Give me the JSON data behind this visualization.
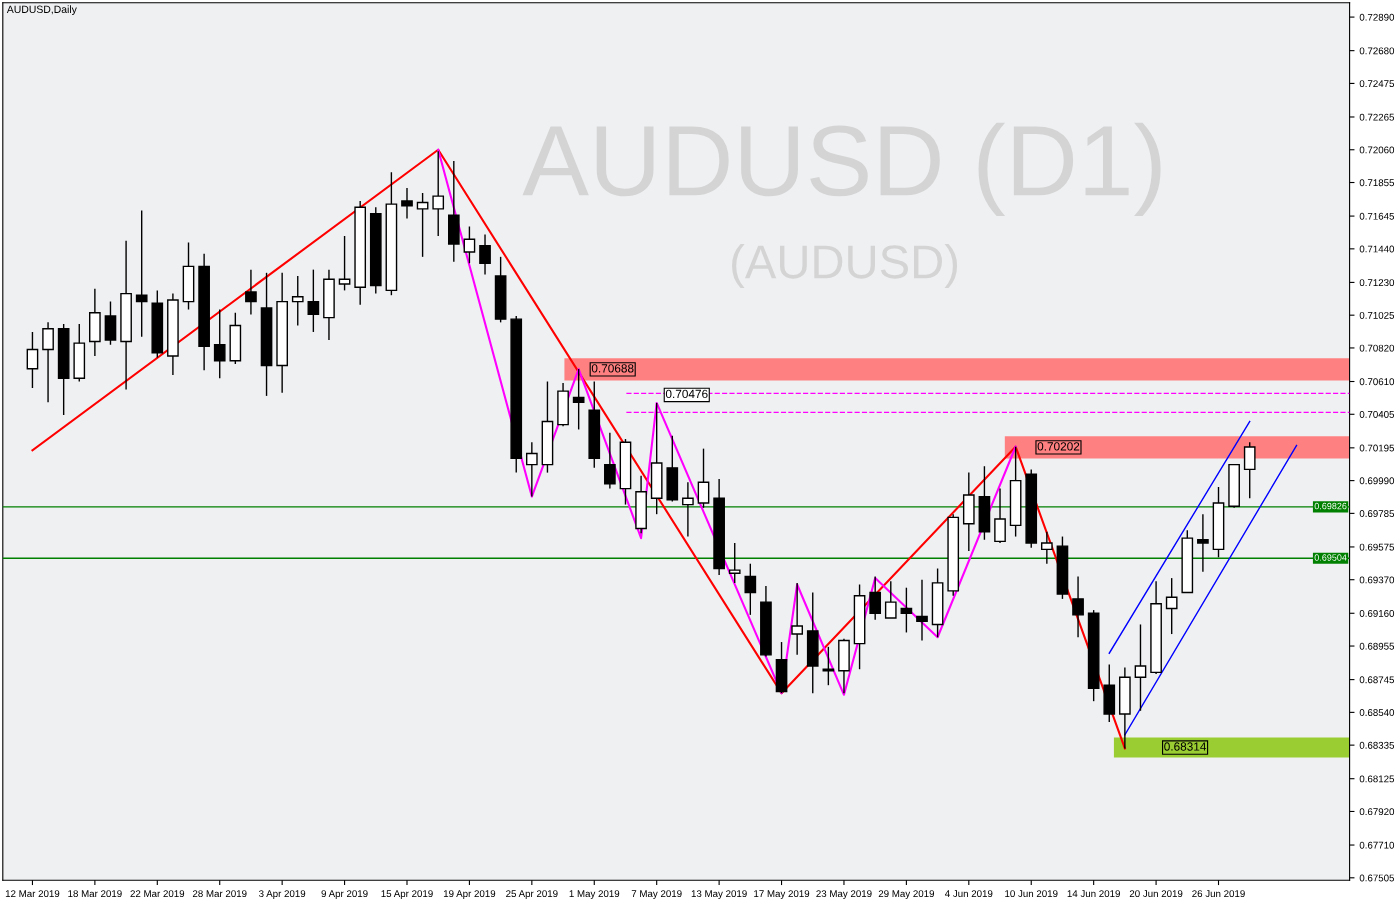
{
  "chart_data": {
    "type": "candlestick",
    "title": "AUDUSD,Daily",
    "categories": [
      "12 Mar 2019",
      null,
      null,
      null,
      "18 Mar 2019",
      null,
      null,
      null,
      "22 Mar 2019",
      null,
      null,
      null,
      "28 Mar 2019",
      null,
      null,
      null,
      "3 Apr 2019",
      null,
      null,
      null,
      "9 Apr 2019",
      null,
      null,
      null,
      "15 Apr 2019",
      null,
      null,
      null,
      "19 Apr 2019",
      null,
      null,
      null,
      "25 Apr 2019",
      null,
      null,
      null,
      "1 May 2019",
      null,
      null,
      null,
      "7 May 2019",
      null,
      null,
      null,
      "13 May 2019",
      null,
      null,
      null,
      "17 May 2019",
      null,
      null,
      null,
      "23 May 2019",
      null,
      null,
      null,
      "29 May 2019",
      null,
      null,
      null,
      "4 Jun 2019",
      null,
      null,
      null,
      "10 Jun 2019",
      null,
      null,
      null,
      "14 Jun 2019",
      null,
      null,
      null,
      "20 Jun 2019",
      null,
      null,
      null,
      "26 Jun 2019",
      null,
      null,
      null,
      null,
      null,
      null,
      null,
      null
    ],
    "ohlc": [
      [
        0.7069,
        0.7092,
        0.7057,
        0.7081
      ],
      [
        0.7081,
        0.7098,
        0.7048,
        0.7094
      ],
      [
        0.7094,
        0.7097,
        0.704,
        0.7063
      ],
      [
        0.7063,
        0.7097,
        0.7061,
        0.7085
      ],
      [
        0.7086,
        0.7119,
        0.7077,
        0.7104
      ],
      [
        0.7102,
        0.7111,
        0.7084,
        0.7087
      ],
      [
        0.7086,
        0.7149,
        0.7056,
        0.7116
      ],
      [
        0.7115,
        0.7168,
        0.7089,
        0.7111
      ],
      [
        0.711,
        0.7118,
        0.7076,
        0.7079
      ],
      [
        0.7077,
        0.7116,
        0.7065,
        0.7112
      ],
      [
        0.7111,
        0.7148,
        0.7106,
        0.7133
      ],
      [
        0.7133,
        0.7141,
        0.7068,
        0.7083
      ],
      [
        0.7084,
        0.7106,
        0.7063,
        0.7074
      ],
      [
        0.7074,
        0.7104,
        0.7072,
        0.7096
      ],
      [
        0.7117,
        0.7131,
        0.7103,
        0.7111
      ],
      [
        0.7107,
        0.7129,
        0.7052,
        0.7071
      ],
      [
        0.7071,
        0.7129,
        0.7054,
        0.7111
      ],
      [
        0.7111,
        0.7127,
        0.7096,
        0.7114
      ],
      [
        0.7111,
        0.7131,
        0.7092,
        0.7103
      ],
      [
        0.7101,
        0.7131,
        0.7087,
        0.7125
      ],
      [
        0.7122,
        0.7152,
        0.7118,
        0.7125
      ],
      [
        0.712,
        0.7174,
        0.7109,
        0.717
      ],
      [
        0.7166,
        0.717,
        0.7116,
        0.7121
      ],
      [
        0.7118,
        0.7192,
        0.7115,
        0.7172
      ],
      [
        0.7174,
        0.7182,
        0.7163,
        0.7171
      ],
      [
        0.7169,
        0.7179,
        0.7139,
        0.7173
      ],
      [
        0.7169,
        0.7205,
        0.7152,
        0.7177
      ],
      [
        0.7165,
        0.7199,
        0.7136,
        0.7147
      ],
      [
        0.7142,
        0.7158,
        0.7135,
        0.715
      ],
      [
        0.7146,
        0.7153,
        0.7128,
        0.7135
      ],
      [
        0.7127,
        0.7139,
        0.7098,
        0.71
      ],
      [
        0.71,
        0.7102,
        0.7004,
        0.7013
      ],
      [
        0.7009,
        0.7023,
        0.6989,
        0.7016
      ],
      [
        0.7009,
        0.7061,
        0.7004,
        0.7036
      ],
      [
        0.7034,
        0.706,
        0.7033,
        0.7055
      ],
      [
        0.7051,
        0.70688,
        0.7031,
        0.7048
      ],
      [
        0.7043,
        0.7061,
        0.7007,
        0.7013
      ],
      [
        0.7009,
        0.7029,
        0.6994,
        0.6997
      ],
      [
        0.6994,
        0.7025,
        0.6984,
        0.7023
      ],
      [
        0.6969,
        0.7002,
        0.6966,
        0.6992
      ],
      [
        0.6988,
        0.70476,
        0.6978,
        0.701
      ],
      [
        0.7007,
        0.7027,
        0.6986,
        0.6987
      ],
      [
        0.6984,
        0.6998,
        0.6964,
        0.6988
      ],
      [
        0.6985,
        0.7019,
        0.6982,
        0.6998
      ],
      [
        0.6988,
        0.7,
        0.694,
        0.6944
      ],
      [
        0.6941,
        0.696,
        0.6935,
        0.6943
      ],
      [
        0.6939,
        0.6947,
        0.6915,
        0.6929
      ],
      [
        0.6923,
        0.6933,
        0.6889,
        0.689
      ],
      [
        0.6887,
        0.6898,
        0.6866,
        0.6867
      ],
      [
        0.6903,
        0.6935,
        0.689,
        0.6908
      ],
      [
        0.6905,
        0.6929,
        0.6866,
        0.6883
      ],
      [
        0.6881,
        0.6895,
        0.6871,
        0.688
      ],
      [
        0.688,
        0.69,
        0.6866,
        0.6899
      ],
      [
        0.6897,
        0.6934,
        0.6881,
        0.6927
      ],
      [
        0.6929,
        0.6939,
        0.6912,
        0.6916
      ],
      [
        0.6913,
        0.6936,
        0.6913,
        0.6923
      ],
      [
        0.6919,
        0.6932,
        0.6904,
        0.6916
      ],
      [
        0.6914,
        0.6937,
        0.6899,
        0.6911
      ],
      [
        0.6909,
        0.6944,
        0.6901,
        0.6935
      ],
      [
        0.693,
        0.6978,
        0.6927,
        0.6976
      ],
      [
        0.6972,
        0.7004,
        0.6955,
        0.699
      ],
      [
        0.6989,
        0.7008,
        0.6962,
        0.6967
      ],
      [
        0.6961,
        0.6994,
        0.696,
        0.6975
      ],
      [
        0.6971,
        0.70202,
        0.6964,
        0.6999
      ],
      [
        0.7003,
        0.7006,
        0.6957,
        0.696
      ],
      [
        0.6956,
        0.6967,
        0.6947,
        0.696
      ],
      [
        0.6958,
        0.6964,
        0.6925,
        0.6928
      ],
      [
        0.6925,
        0.6939,
        0.6901,
        0.6915
      ],
      [
        0.6916,
        0.6918,
        0.6861,
        0.6869
      ],
      [
        0.6871,
        0.6884,
        0.6848,
        0.6853
      ],
      [
        0.6853,
        0.6882,
        0.68314,
        0.6876
      ],
      [
        0.6876,
        0.6909,
        0.6855,
        0.6883
      ],
      [
        0.6879,
        0.6936,
        0.6878,
        0.6922
      ],
      [
        0.6919,
        0.6938,
        0.6903,
        0.6926
      ],
      [
        0.6929,
        0.6968,
        0.6929,
        0.6963
      ],
      [
        0.6962,
        0.6978,
        0.6942,
        0.696
      ],
      [
        0.6956,
        0.6995,
        0.6951,
        0.6985
      ],
      [
        0.6983,
        0.7009,
        0.6982,
        0.7009
      ],
      [
        0.7006,
        0.7023,
        0.6988,
        0.702
      ],
      null,
      null,
      null,
      null,
      null,
      null
    ],
    "series": [
      {
        "type": "line",
        "color": "#ff0000",
        "values": [
          0.7018,
          null,
          null,
          null,
          null,
          null,
          null,
          null,
          null,
          null,
          null,
          null,
          null,
          null,
          null,
          null,
          null,
          null,
          null,
          null,
          null,
          null,
          null,
          null,
          null,
          null,
          0.7206,
          null,
          null,
          null,
          null,
          null,
          null,
          null,
          null,
          null,
          null,
          null,
          null,
          null,
          null,
          null,
          null,
          null,
          null,
          null,
          null,
          null,
          0.6866,
          null,
          null,
          null,
          null,
          null,
          null,
          null,
          null,
          null,
          null,
          null,
          null,
          null,
          null,
          0.70202,
          null,
          null,
          null,
          null,
          null,
          null,
          0.68314,
          null,
          null,
          null,
          null,
          null,
          null,
          null,
          null,
          null,
          null,
          null,
          null,
          null,
          null
        ]
      },
      {
        "type": "line",
        "color": "#ff00ff",
        "values": [
          null,
          null,
          null,
          null,
          null,
          null,
          null,
          null,
          null,
          null,
          null,
          null,
          null,
          null,
          null,
          null,
          null,
          null,
          null,
          null,
          null,
          null,
          null,
          null,
          null,
          null,
          0.7206,
          null,
          null,
          null,
          null,
          null,
          0.6989,
          null,
          null,
          0.70688,
          null,
          null,
          null,
          0.6963,
          0.70476,
          null,
          null,
          null,
          null,
          null,
          null,
          null,
          0.6866,
          0.6934,
          null,
          null,
          0.6865,
          null,
          0.6938,
          null,
          null,
          null,
          0.6901,
          null,
          null,
          null,
          null,
          0.70202,
          null,
          null,
          null,
          null,
          null,
          null,
          null,
          null,
          null,
          null,
          null,
          null,
          null,
          null,
          null,
          null,
          null,
          null,
          null,
          null,
          null
        ]
      },
      {
        "type": "line",
        "color": "#0000ff",
        "values": [
          null,
          null,
          null,
          null,
          null,
          null,
          null,
          null,
          null,
          null,
          null,
          null,
          null,
          null,
          null,
          null,
          null,
          null,
          null,
          null,
          null,
          null,
          null,
          null,
          null,
          null,
          null,
          null,
          null,
          null,
          null,
          null,
          null,
          null,
          null,
          null,
          null,
          null,
          null,
          null,
          null,
          null,
          null,
          null,
          null,
          null,
          null,
          null,
          null,
          null,
          null,
          null,
          null,
          null,
          null,
          null,
          null,
          null,
          null,
          null,
          null,
          null,
          null,
          null,
          null,
          null,
          null,
          null,
          null,
          0.6891,
          null,
          null,
          null,
          null,
          null,
          null,
          null,
          null,
          0.7036,
          null,
          null,
          null,
          null,
          null,
          null
        ]
      },
      {
        "type": "line",
        "color": "#0000ff",
        "values": [
          null,
          null,
          null,
          null,
          null,
          null,
          null,
          null,
          null,
          null,
          null,
          null,
          null,
          null,
          null,
          null,
          null,
          null,
          null,
          null,
          null,
          null,
          null,
          null,
          null,
          null,
          null,
          null,
          null,
          null,
          null,
          null,
          null,
          null,
          null,
          null,
          null,
          null,
          null,
          null,
          null,
          null,
          null,
          null,
          null,
          null,
          null,
          null,
          null,
          null,
          null,
          null,
          null,
          null,
          null,
          null,
          null,
          null,
          null,
          null,
          null,
          null,
          null,
          null,
          null,
          null,
          null,
          null,
          null,
          null,
          0.684,
          null,
          null,
          null,
          null,
          null,
          null,
          null,
          null,
          null,
          null,
          0.7021,
          null,
          null,
          null
        ]
      }
    ],
    "ylim": [
      0.6749,
      0.7298
    ],
    "yticks": [
      {
        "value": 0.7289,
        "label": "0.72890"
      },
      {
        "value": 0.7268,
        "label": "0.72680"
      },
      0.72475,
      0.72265,
      {
        "value": 0.7206,
        "label": "0.72060"
      },
      0.71855,
      0.71645,
      {
        "value": 0.7144,
        "label": "0.71440"
      },
      {
        "value": 0.7123,
        "label": "0.71230"
      },
      0.71025,
      {
        "value": 0.7082,
        "label": "0.70820"
      },
      {
        "value": 0.7061,
        "label": "0.70610"
      },
      0.70405,
      0.70195,
      {
        "value": 0.6999,
        "label": "0.69990"
      },
      0.69785,
      0.69575,
      {
        "value": 0.6937,
        "label": "0.69370"
      },
      {
        "value": 0.6916,
        "label": "0.69160"
      },
      0.68955,
      0.68745,
      {
        "value": 0.6854,
        "label": "0.68540"
      },
      0.68335,
      0.68125,
      {
        "value": 0.6792,
        "label": "0.67920"
      },
      {
        "value": 0.6771,
        "label": "0.67710"
      },
      0.67505
    ],
    "ref_lines": [
      {
        "axis": "y",
        "value": 0.69826,
        "label": "0.69826",
        "color": "#008000"
      },
      {
        "axis": "y",
        "value": 0.69504,
        "label": "0.69504",
        "color": "#008000"
      },
      {
        "axis": "y",
        "value": 0.70536,
        "color": "#ff00ff",
        "line_style": "dashed"
      },
      {
        "axis": "y",
        "value": 0.70417,
        "color": "#ff00ff",
        "line_style": "dashed"
      }
    ],
    "bands": [
      {
        "axis": "y",
        "from": 0.70617,
        "to": 0.70755,
        "label": "0.70688",
        "color": "#ff8080"
      },
      {
        "axis": "y",
        "from": 0.70129,
        "to": 0.70267,
        "label": "0.70202",
        "color": "#ff8080"
      },
      {
        "axis": "y",
        "from": 0.68257,
        "to": 0.68383,
        "label": "0.68314",
        "color": "#9acd32"
      }
    ],
    "annotations": [
      "AUDUSD (D1)",
      "(AUDUSD)",
      "0.70476"
    ],
    "grid": false,
    "legend": false
  }
}
